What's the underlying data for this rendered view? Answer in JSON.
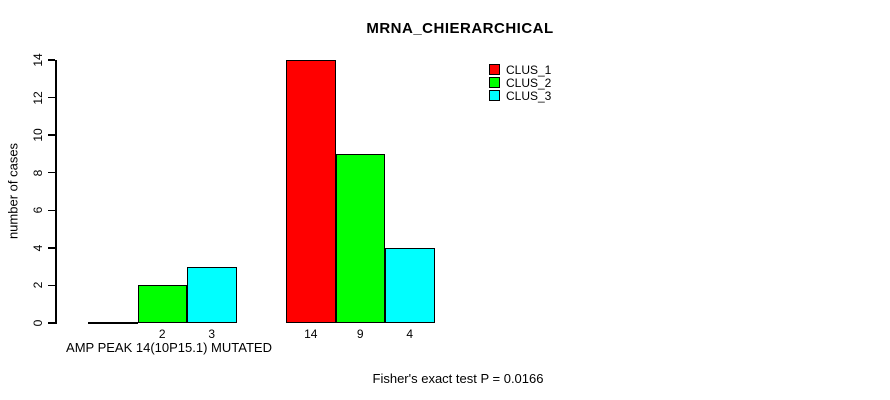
{
  "figure": {
    "background_color": "#FFFFFF",
    "text_color": "#000000"
  },
  "chart_data": {
    "type": "bar",
    "title": "MRNA_CHIERARCHICAL",
    "xlabel": "AMP PEAK 14(10P15.1) MUTATED",
    "ylabel": "number of cases",
    "annotation": "Fisher's exact test P = 0.0166",
    "ylim": [
      0,
      14
    ],
    "yticks": [
      0,
      2,
      4,
      6,
      8,
      10,
      12,
      14
    ],
    "grid": false,
    "bar_value_labels": true,
    "legend_position": "top-right",
    "n_groups": 2,
    "series": [
      {
        "name": "CLUS_1",
        "color": "#FF0000",
        "values": [
          0,
          14
        ]
      },
      {
        "name": "CLUS_2",
        "color": "#00FF00",
        "values": [
          2,
          9
        ]
      },
      {
        "name": "CLUS_3",
        "color": "#00FFFF",
        "values": [
          3,
          4
        ]
      }
    ]
  }
}
